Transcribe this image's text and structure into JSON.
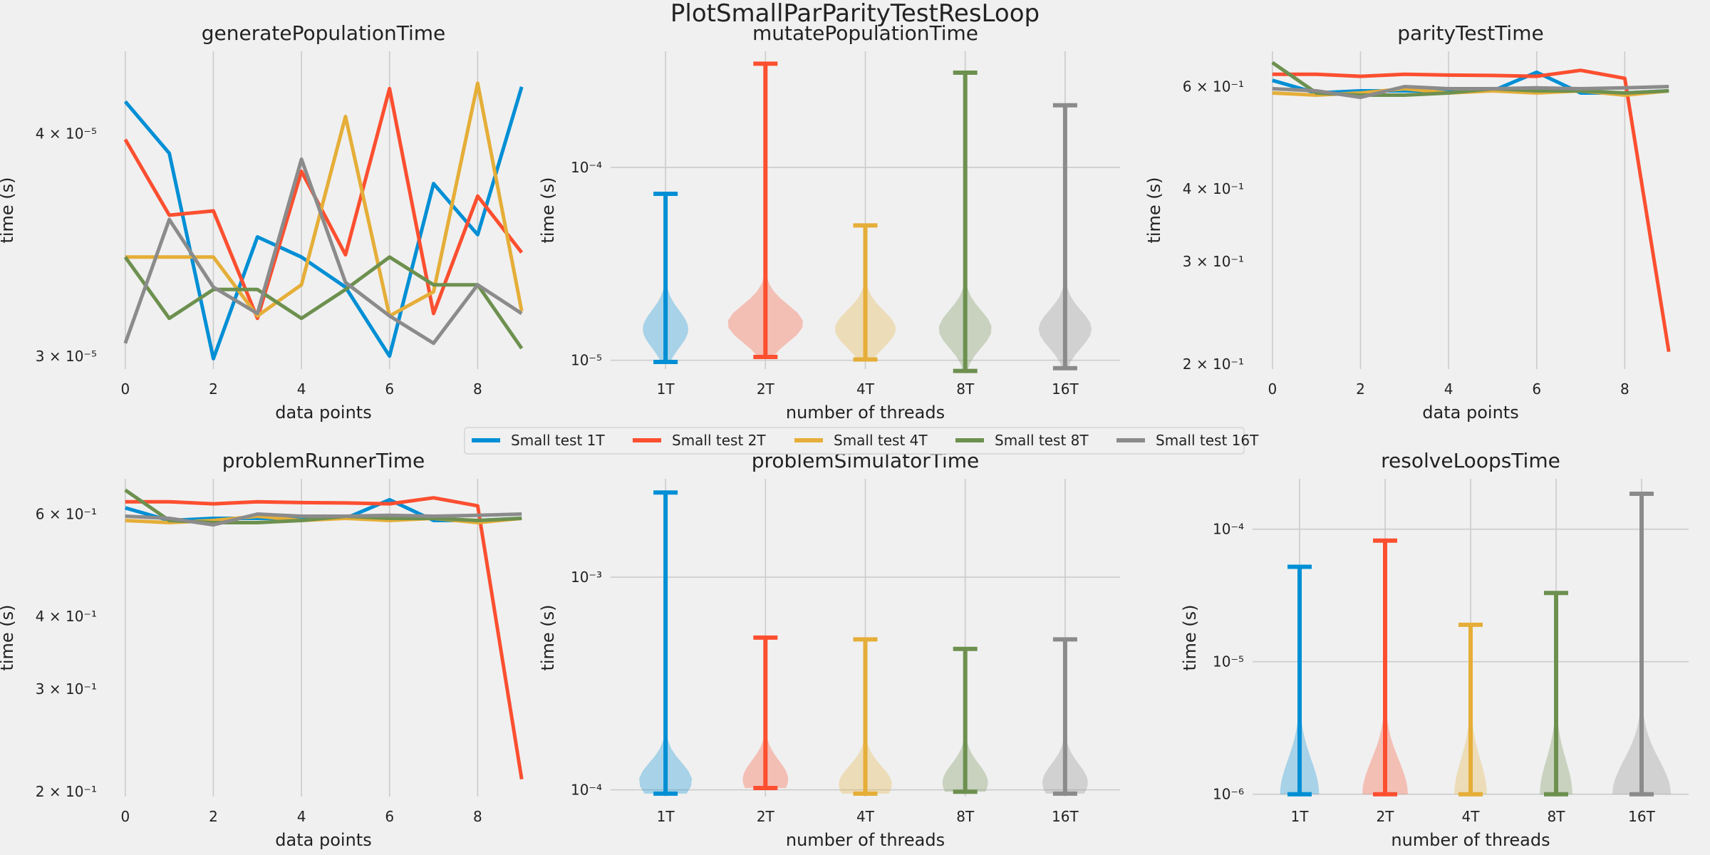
{
  "figure": {
    "title": "PlotSmallParParityTestResLoop",
    "background": "#f0f0f0",
    "grid_color": "#cbcbcb"
  },
  "legend": {
    "placement": "center, between rows",
    "entries": [
      {
        "label": "Small test 1T",
        "color": "#008fd5"
      },
      {
        "label": "Small test 2T",
        "color": "#fc4f30"
      },
      {
        "label": "Small test 4T",
        "color": "#e5ae38"
      },
      {
        "label": "Small test 8T",
        "color": "#6d904f"
      },
      {
        "label": "Small test 16T",
        "color": "#8b8b8b"
      }
    ]
  },
  "chart_data": [
    {
      "type": "line",
      "title": "generatePopulationTime",
      "xlabel": "data points",
      "ylabel": "time (s)",
      "yscale": "log",
      "xlim": [
        -0.45,
        9.45
      ],
      "ylim": [
        2.95e-05,
        4.45e-05
      ],
      "xticks": [
        0,
        2,
        4,
        6,
        8
      ],
      "yticks": [
        {
          "value": 3e-05,
          "label": "3 × 10⁻⁵"
        },
        {
          "value": 4e-05,
          "label": "4 × 10⁻⁵"
        }
      ],
      "grid": "x",
      "x": [
        0,
        1,
        2,
        3,
        4,
        5,
        6,
        7,
        8,
        9
      ],
      "series": [
        {
          "name": "Small test 1T",
          "color": "#008fd5",
          "values": [
            4.17e-05,
            3.9e-05,
            2.99e-05,
            3.5e-05,
            3.41e-05,
            3.28e-05,
            3e-05,
            3.75e-05,
            3.51e-05,
            4.25e-05
          ]
        },
        {
          "name": "Small test 2T",
          "color": "#fc4f30",
          "values": [
            3.97e-05,
            3.6e-05,
            3.62e-05,
            3.15e-05,
            3.81e-05,
            3.42e-05,
            4.24e-05,
            3.17e-05,
            3.69e-05,
            3.43e-05
          ]
        },
        {
          "name": "Small test 4T",
          "color": "#e5ae38",
          "values": [
            3.41e-05,
            3.41e-05,
            3.41e-05,
            3.16e-05,
            3.29e-05,
            4.09e-05,
            3.16e-05,
            3.26e-05,
            4.27e-05,
            3.18e-05
          ]
        },
        {
          "name": "Small test 8T",
          "color": "#6d904f",
          "values": [
            3.41e-05,
            3.15e-05,
            3.27e-05,
            3.27e-05,
            3.15e-05,
            3.27e-05,
            3.41e-05,
            3.29e-05,
            3.29e-05,
            3.03e-05
          ]
        },
        {
          "name": "Small test 16T",
          "color": "#8b8b8b",
          "values": [
            3.05e-05,
            3.58e-05,
            3.28e-05,
            3.17e-05,
            3.87e-05,
            3.3e-05,
            3.16e-05,
            3.05e-05,
            3.29e-05,
            3.17e-05
          ]
        }
      ]
    },
    {
      "type": "violin",
      "title": "mutatePopulationTime",
      "xlabel": "number of threads",
      "ylabel": "time (s)",
      "yscale": "log",
      "ylim": [
        9e-06,
        0.0004
      ],
      "yticks": [
        {
          "value": 1e-05,
          "label": "10⁻⁵"
        },
        {
          "value": 0.0001,
          "label": "10⁻⁴"
        }
      ],
      "grid": "both",
      "categories": [
        "1T",
        "2T",
        "4T",
        "8T",
        "16T"
      ],
      "series": [
        {
          "name": "1T",
          "color": "#008fd5",
          "min": 9.8e-06,
          "max": 7.3e-05,
          "mode": 1.45e-05,
          "spread": 0.6
        },
        {
          "name": "2T",
          "color": "#fc4f30",
          "min": 1.04e-05,
          "max": 0.000345,
          "mode": 1.55e-05,
          "spread": 1.0
        },
        {
          "name": "4T",
          "color": "#e5ae38",
          "min": 1.01e-05,
          "max": 5e-05,
          "mode": 1.45e-05,
          "spread": 0.8
        },
        {
          "name": "8T",
          "color": "#6d904f",
          "min": 8.8e-06,
          "max": 0.00031,
          "mode": 1.45e-05,
          "spread": 0.7
        },
        {
          "name": "16T",
          "color": "#8b8b8b",
          "min": 9.1e-06,
          "max": 0.00021,
          "mode": 1.45e-05,
          "spread": 0.7
        }
      ]
    },
    {
      "type": "line",
      "title": "parityTestTime",
      "xlabel": "data points",
      "ylabel": "time (s)",
      "yscale": "log",
      "xlim": [
        -0.45,
        9.45
      ],
      "ylim": [
        0.196,
        0.69
      ],
      "xticks": [
        0,
        2,
        4,
        6,
        8
      ],
      "yticks": [
        {
          "value": 0.2,
          "label": "2 × 10⁻¹"
        },
        {
          "value": 0.3,
          "label": "3 × 10⁻¹"
        },
        {
          "value": 0.4,
          "label": "4 × 10⁻¹"
        },
        {
          "value": 0.6,
          "label": "6 × 10⁻¹"
        }
      ],
      "grid": "x",
      "x": [
        0,
        1,
        2,
        3,
        4,
        5,
        6,
        7,
        8,
        9
      ],
      "series": [
        {
          "name": "Small test 1T",
          "color": "#008fd5",
          "values": [
            0.615,
            0.585,
            0.59,
            0.59,
            0.59,
            0.59,
            0.635,
            0.585,
            0.585,
            0.59
          ]
        },
        {
          "name": "Small test 2T",
          "color": "#fc4f30",
          "values": [
            0.63,
            0.63,
            0.625,
            0.63,
            0.628,
            0.627,
            0.625,
            0.64,
            0.62,
            0.21
          ]
        },
        {
          "name": "Small test 4T",
          "color": "#e5ae38",
          "values": [
            0.585,
            0.58,
            0.585,
            0.595,
            0.585,
            0.59,
            0.585,
            0.59,
            0.58,
            0.59
          ]
        },
        {
          "name": "Small test 8T",
          "color": "#6d904f",
          "values": [
            0.66,
            0.585,
            0.58,
            0.58,
            0.585,
            0.595,
            0.59,
            0.59,
            0.585,
            0.59
          ]
        },
        {
          "name": "Small test 16T",
          "color": "#8b8b8b",
          "values": [
            0.595,
            0.59,
            0.575,
            0.6,
            0.595,
            0.595,
            0.597,
            0.595,
            0.597,
            0.6
          ]
        }
      ]
    },
    {
      "type": "line",
      "title": "problemRunnerTime",
      "xlabel": "data points",
      "ylabel": "time (s)",
      "yscale": "log",
      "xlim": [
        -0.45,
        9.45
      ],
      "ylim": [
        0.196,
        0.69
      ],
      "xticks": [
        0,
        2,
        4,
        6,
        8
      ],
      "yticks": [
        {
          "value": 0.2,
          "label": "2 × 10⁻¹"
        },
        {
          "value": 0.3,
          "label": "3 × 10⁻¹"
        },
        {
          "value": 0.4,
          "label": "4 × 10⁻¹"
        },
        {
          "value": 0.6,
          "label": "6 × 10⁻¹"
        }
      ],
      "grid": "x",
      "x": [
        0,
        1,
        2,
        3,
        4,
        5,
        6,
        7,
        8,
        9
      ],
      "series": [
        {
          "name": "Small test 1T",
          "color": "#008fd5",
          "values": [
            0.615,
            0.585,
            0.59,
            0.59,
            0.59,
            0.59,
            0.635,
            0.585,
            0.585,
            0.59
          ]
        },
        {
          "name": "Small test 2T",
          "color": "#fc4f30",
          "values": [
            0.63,
            0.63,
            0.625,
            0.63,
            0.628,
            0.627,
            0.625,
            0.64,
            0.62,
            0.21
          ]
        },
        {
          "name": "Small test 4T",
          "color": "#e5ae38",
          "values": [
            0.585,
            0.58,
            0.585,
            0.595,
            0.585,
            0.59,
            0.585,
            0.59,
            0.58,
            0.59
          ]
        },
        {
          "name": "Small test 8T",
          "color": "#6d904f",
          "values": [
            0.66,
            0.585,
            0.58,
            0.58,
            0.585,
            0.595,
            0.59,
            0.59,
            0.585,
            0.59
          ]
        },
        {
          "name": "Small test 16T",
          "color": "#8b8b8b",
          "values": [
            0.595,
            0.59,
            0.575,
            0.6,
            0.595,
            0.595,
            0.597,
            0.595,
            0.597,
            0.6
          ]
        }
      ]
    },
    {
      "type": "violin",
      "title": "problemSimulatorTime",
      "xlabel": "number of threads",
      "ylabel": "time (s)",
      "yscale": "log",
      "ylim": [
        9.3e-05,
        0.0029
      ],
      "yticks": [
        {
          "value": 0.0001,
          "label": "10⁻⁴"
        },
        {
          "value": 0.001,
          "label": "10⁻³"
        }
      ],
      "grid": "both",
      "categories": [
        "1T",
        "2T",
        "4T",
        "8T",
        "16T"
      ],
      "series": [
        {
          "name": "1T",
          "color": "#008fd5",
          "min": 9.6e-05,
          "max": 0.0025,
          "mode": 0.00011,
          "spread": 0.7
        },
        {
          "name": "2T",
          "color": "#fc4f30",
          "min": 0.000102,
          "max": 0.00052,
          "mode": 0.000112,
          "spread": 0.6
        },
        {
          "name": "4T",
          "color": "#e5ae38",
          "min": 9.6e-05,
          "max": 0.00051,
          "mode": 0.000106,
          "spread": 0.7
        },
        {
          "name": "8T",
          "color": "#6d904f",
          "min": 9.8e-05,
          "max": 0.00046,
          "mode": 0.000108,
          "spread": 0.6
        },
        {
          "name": "16T",
          "color": "#8b8b8b",
          "min": 9.6e-05,
          "max": 0.00051,
          "mode": 0.000108,
          "spread": 0.6
        }
      ]
    },
    {
      "type": "violin",
      "title": "resolveLoopsTime",
      "xlabel": "number of threads",
      "ylabel": "time (s)",
      "yscale": "log",
      "ylim": [
        9.6e-07,
        0.00024
      ],
      "yticks": [
        {
          "value": 1e-06,
          "label": "10⁻⁶"
        },
        {
          "value": 1e-05,
          "label": "10⁻⁵"
        },
        {
          "value": 0.0001,
          "label": "10⁻⁴"
        }
      ],
      "grid": "both",
      "categories": [
        "1T",
        "2T",
        "4T",
        "8T",
        "16T"
      ],
      "series": [
        {
          "name": "1T",
          "color": "#008fd5",
          "min": 1e-06,
          "max": 5.2e-05,
          "mode": 1e-06,
          "spread": 0.6,
          "bump": 2e-06
        },
        {
          "name": "2T",
          "color": "#fc4f30",
          "min": 1e-06,
          "max": 8.2e-05,
          "mode": 1e-06,
          "spread": 0.7
        },
        {
          "name": "4T",
          "color": "#e5ae38",
          "min": 1e-06,
          "max": 1.9e-05,
          "mode": 1e-06,
          "spread": 0.5,
          "bump": 2e-06
        },
        {
          "name": "8T",
          "color": "#6d904f",
          "min": 1e-06,
          "max": 3.3e-05,
          "mode": 1e-06,
          "spread": 0.5,
          "bump": 2e-06
        },
        {
          "name": "16T",
          "color": "#8b8b8b",
          "min": 1e-06,
          "max": 0.000185,
          "mode": 1e-06,
          "spread": 0.9
        }
      ]
    }
  ]
}
